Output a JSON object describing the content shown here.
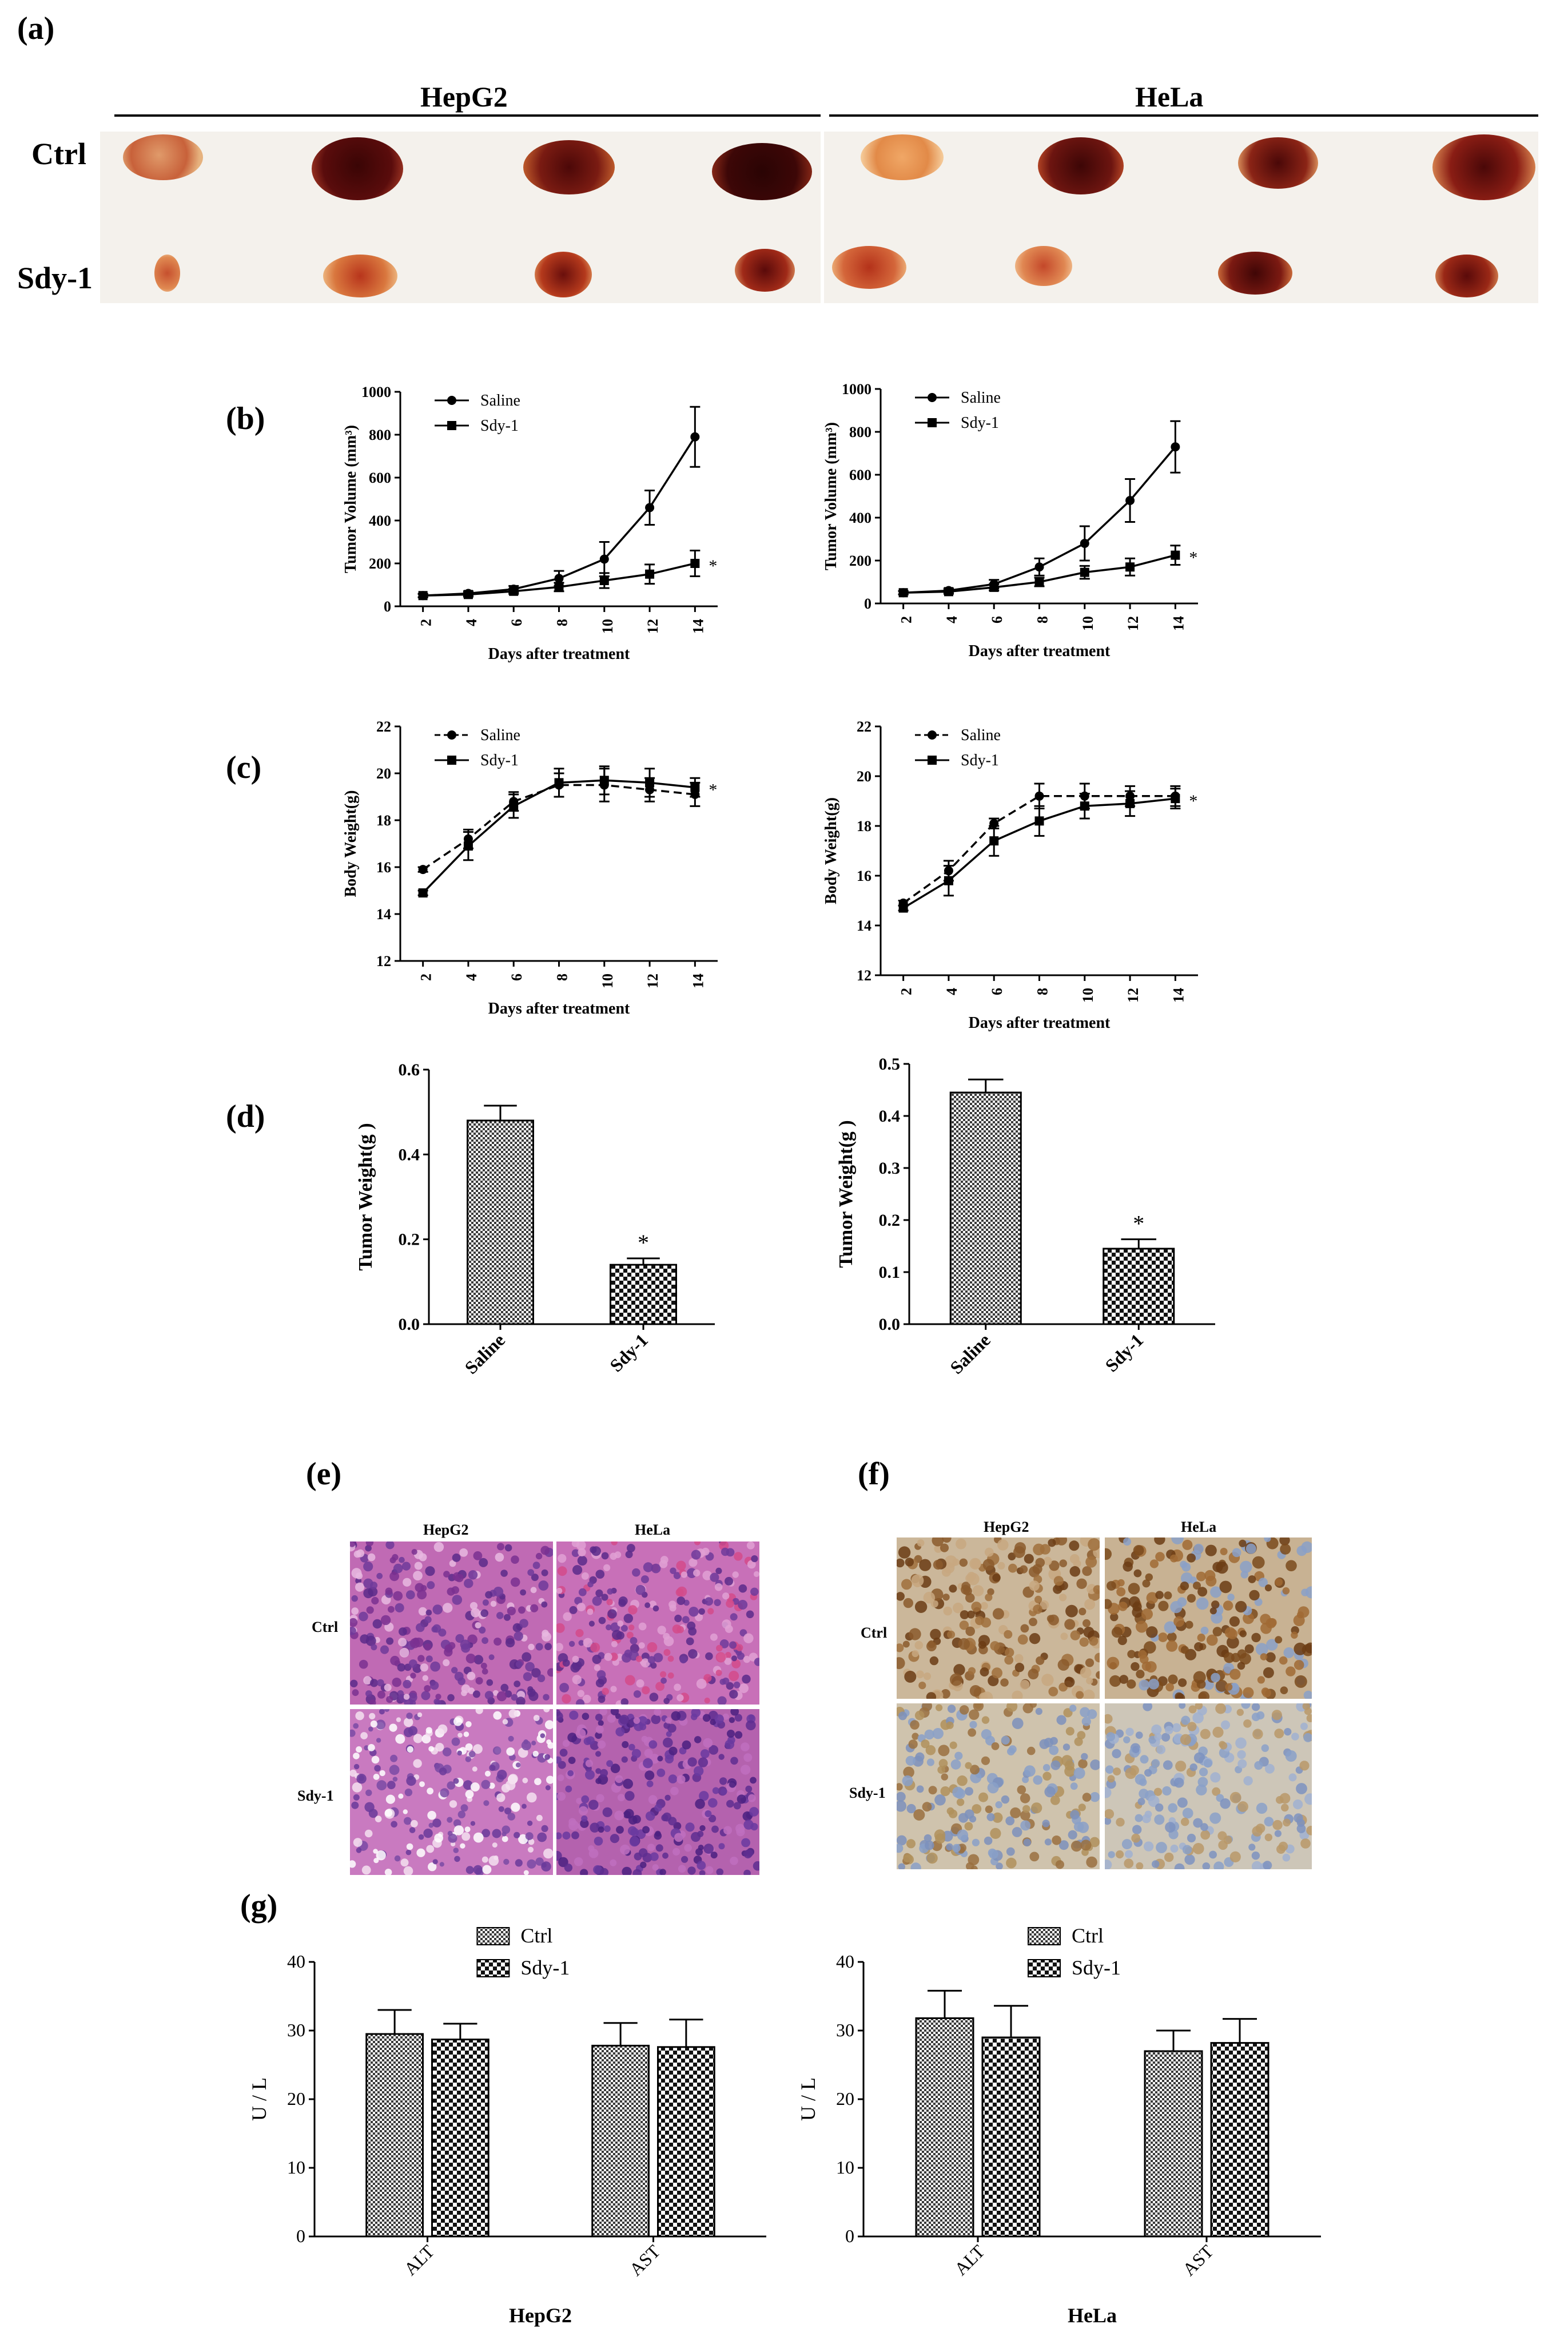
{
  "panels": {
    "a": {
      "label": "(a)",
      "group_left": "HepG2",
      "group_right": "HeLa",
      "row_top": "Ctrl",
      "row_bottom": "Sdy-1"
    },
    "b": {
      "label": "(b)"
    },
    "c": {
      "label": "(c)"
    },
    "d": {
      "label": "(d)"
    },
    "e": {
      "label": "(e)",
      "col_left": "HepG2",
      "col_right": "HeLa",
      "row_top": "Ctrl",
      "row_bottom": "Sdy-1"
    },
    "f": {
      "label": "(f)",
      "col_left": "HepG2",
      "col_right": "HeLa",
      "row_top": "Ctrl",
      "row_bottom": "Sdy-1"
    },
    "g": {
      "label": "(g)"
    }
  },
  "colors": {
    "tumor_dark": "#4a0a0a",
    "tumor_red": "#a8241a",
    "tumor_light": "#e8a070",
    "he_stain": "#b04fa8",
    "ihc_brown": "#8b5a2b",
    "ihc_blue": "#8aa0c8"
  },
  "chart_data": [
    {
      "id": "b-left",
      "type": "line",
      "xlabel": "Days after treatment",
      "ylabel": "Tumor Volume (mm³)",
      "x": [
        2,
        4,
        6,
        8,
        10,
        12,
        14
      ],
      "xlim": [
        1,
        15
      ],
      "ylim": [
        0,
        1000
      ],
      "yticks": [
        0,
        200,
        400,
        600,
        800,
        1000
      ],
      "legend": "top-left",
      "annotation": "*",
      "series": [
        {
          "name": "Saline",
          "marker": "circle",
          "dash": false,
          "values": [
            50,
            60,
            80,
            130,
            220,
            460,
            790
          ],
          "err": [
            8,
            10,
            15,
            35,
            80,
            80,
            140
          ]
        },
        {
          "name": "Sdy-1",
          "marker": "square",
          "dash": false,
          "values": [
            50,
            55,
            70,
            90,
            120,
            150,
            200
          ],
          "err": [
            8,
            10,
            12,
            20,
            35,
            45,
            60
          ]
        }
      ]
    },
    {
      "id": "b-right",
      "type": "line",
      "xlabel": "Days after treatment",
      "ylabel": "Tumor Volume (mm³)",
      "x": [
        2,
        4,
        6,
        8,
        10,
        12,
        14
      ],
      "xlim": [
        1,
        15
      ],
      "ylim": [
        0,
        1000
      ],
      "yticks": [
        0,
        200,
        400,
        600,
        800,
        1000
      ],
      "legend": "top-left",
      "annotation": "*",
      "series": [
        {
          "name": "Saline",
          "marker": "circle",
          "dash": false,
          "values": [
            50,
            60,
            90,
            170,
            280,
            480,
            730
          ],
          "err": [
            8,
            10,
            20,
            40,
            80,
            100,
            120
          ]
        },
        {
          "name": "Sdy-1",
          "marker": "square",
          "dash": false,
          "values": [
            50,
            55,
            75,
            100,
            145,
            170,
            225
          ],
          "err": [
            8,
            10,
            15,
            20,
            30,
            40,
            45
          ]
        }
      ]
    },
    {
      "id": "c-left",
      "type": "line",
      "xlabel": "Days after treatment",
      "ylabel": "Body Weight(g)",
      "x": [
        2,
        4,
        6,
        8,
        10,
        12,
        14
      ],
      "xlim": [
        1,
        15
      ],
      "ylim": [
        12,
        22
      ],
      "yticks": [
        12,
        14,
        16,
        18,
        20,
        22
      ],
      "legend": "top-left",
      "annotation": "*",
      "series": [
        {
          "name": "Saline",
          "marker": "circle",
          "dash": true,
          "values": [
            15.9,
            17.2,
            18.8,
            19.5,
            19.5,
            19.3,
            19.1
          ],
          "err": [
            0.1,
            0.4,
            0.4,
            0.5,
            0.7,
            0.5,
            0.5
          ]
        },
        {
          "name": "Sdy-1",
          "marker": "square",
          "dash": false,
          "values": [
            14.9,
            16.9,
            18.6,
            19.6,
            19.7,
            19.6,
            19.4
          ],
          "err": [
            0.1,
            0.6,
            0.5,
            0.6,
            0.6,
            0.6,
            0.4
          ]
        }
      ]
    },
    {
      "id": "c-right",
      "type": "line",
      "xlabel": "Days after treatment",
      "ylabel": "Body Weight(g)",
      "x": [
        2,
        4,
        6,
        8,
        10,
        12,
        14
      ],
      "xlim": [
        1,
        15
      ],
      "ylim": [
        12,
        22
      ],
      "yticks": [
        12,
        14,
        16,
        18,
        20,
        22
      ],
      "legend": "top-left",
      "annotation": "*",
      "series": [
        {
          "name": "Saline",
          "marker": "circle",
          "dash": true,
          "values": [
            14.9,
            16.2,
            18.1,
            19.2,
            19.2,
            19.2,
            19.2
          ],
          "err": [
            0.1,
            0.4,
            0.2,
            0.5,
            0.5,
            0.4,
            0.4
          ]
        },
        {
          "name": "Sdy-1",
          "marker": "square",
          "dash": false,
          "values": [
            14.7,
            15.8,
            17.4,
            18.2,
            18.8,
            18.9,
            19.1
          ],
          "err": [
            0.1,
            0.6,
            0.6,
            0.6,
            0.5,
            0.5,
            0.4
          ]
        }
      ]
    },
    {
      "id": "d-left",
      "type": "bar",
      "ylabel": "Tumor Weight(g )",
      "categories": [
        "Saline",
        "Sdy-1"
      ],
      "values": [
        0.48,
        0.14
      ],
      "err": [
        0.035,
        0.015
      ],
      "ylim": [
        0,
        0.6
      ],
      "yticks": [
        0.0,
        0.2,
        0.4,
        0.6
      ],
      "annotation": "*"
    },
    {
      "id": "d-right",
      "type": "bar",
      "ylabel": "Tumor Weight(g )",
      "categories": [
        "Saline",
        "Sdy-1"
      ],
      "values": [
        0.445,
        0.145
      ],
      "err": [
        0.025,
        0.018
      ],
      "ylim": [
        0,
        0.5
      ],
      "yticks": [
        0.0,
        0.1,
        0.2,
        0.3,
        0.4,
        0.5
      ],
      "annotation": "*"
    },
    {
      "id": "g-left",
      "type": "bar",
      "ylabel": "U / L",
      "xlabel": "HepG2",
      "categories": [
        "ALT",
        "AST"
      ],
      "ylim": [
        0,
        40
      ],
      "yticks": [
        0,
        10,
        20,
        30,
        40
      ],
      "legend": "top-center",
      "series": [
        {
          "name": "Ctrl",
          "values": [
            29.5,
            27.8
          ],
          "err": [
            3.5,
            3.3
          ]
        },
        {
          "name": "Sdy-1",
          "values": [
            28.7,
            27.6
          ],
          "err": [
            2.3,
            4.0
          ]
        }
      ]
    },
    {
      "id": "g-right",
      "type": "bar",
      "ylabel": "U / L",
      "xlabel": "HeLa",
      "categories": [
        "ALT",
        "AST"
      ],
      "ylim": [
        0,
        40
      ],
      "yticks": [
        0,
        10,
        20,
        30,
        40
      ],
      "legend": "top-center",
      "series": [
        {
          "name": "Ctrl",
          "values": [
            31.8,
            27.0
          ],
          "err": [
            4.0,
            3.0
          ]
        },
        {
          "name": "Sdy-1",
          "values": [
            29.0,
            28.2
          ],
          "err": [
            4.6,
            3.5
          ]
        }
      ]
    }
  ]
}
